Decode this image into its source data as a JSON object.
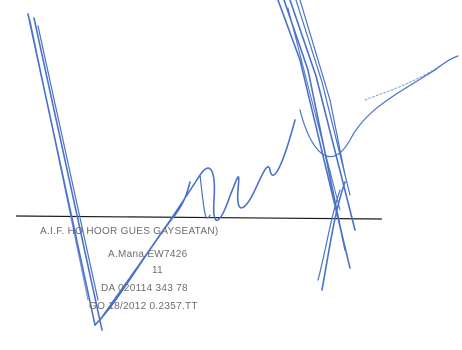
{
  "signature": {
    "name_line": "A.I.F. HO HOOR GUES GAYSEATAN)",
    "role_line": "A.Mana EW7426",
    "marker_line": "11",
    "date_line_1": "DA 020114 343 78",
    "date_line_2": "GO 18/2012 0.2357.TT",
    "ink_color": "#4a72c8",
    "line_color": "#1a1a1a"
  }
}
